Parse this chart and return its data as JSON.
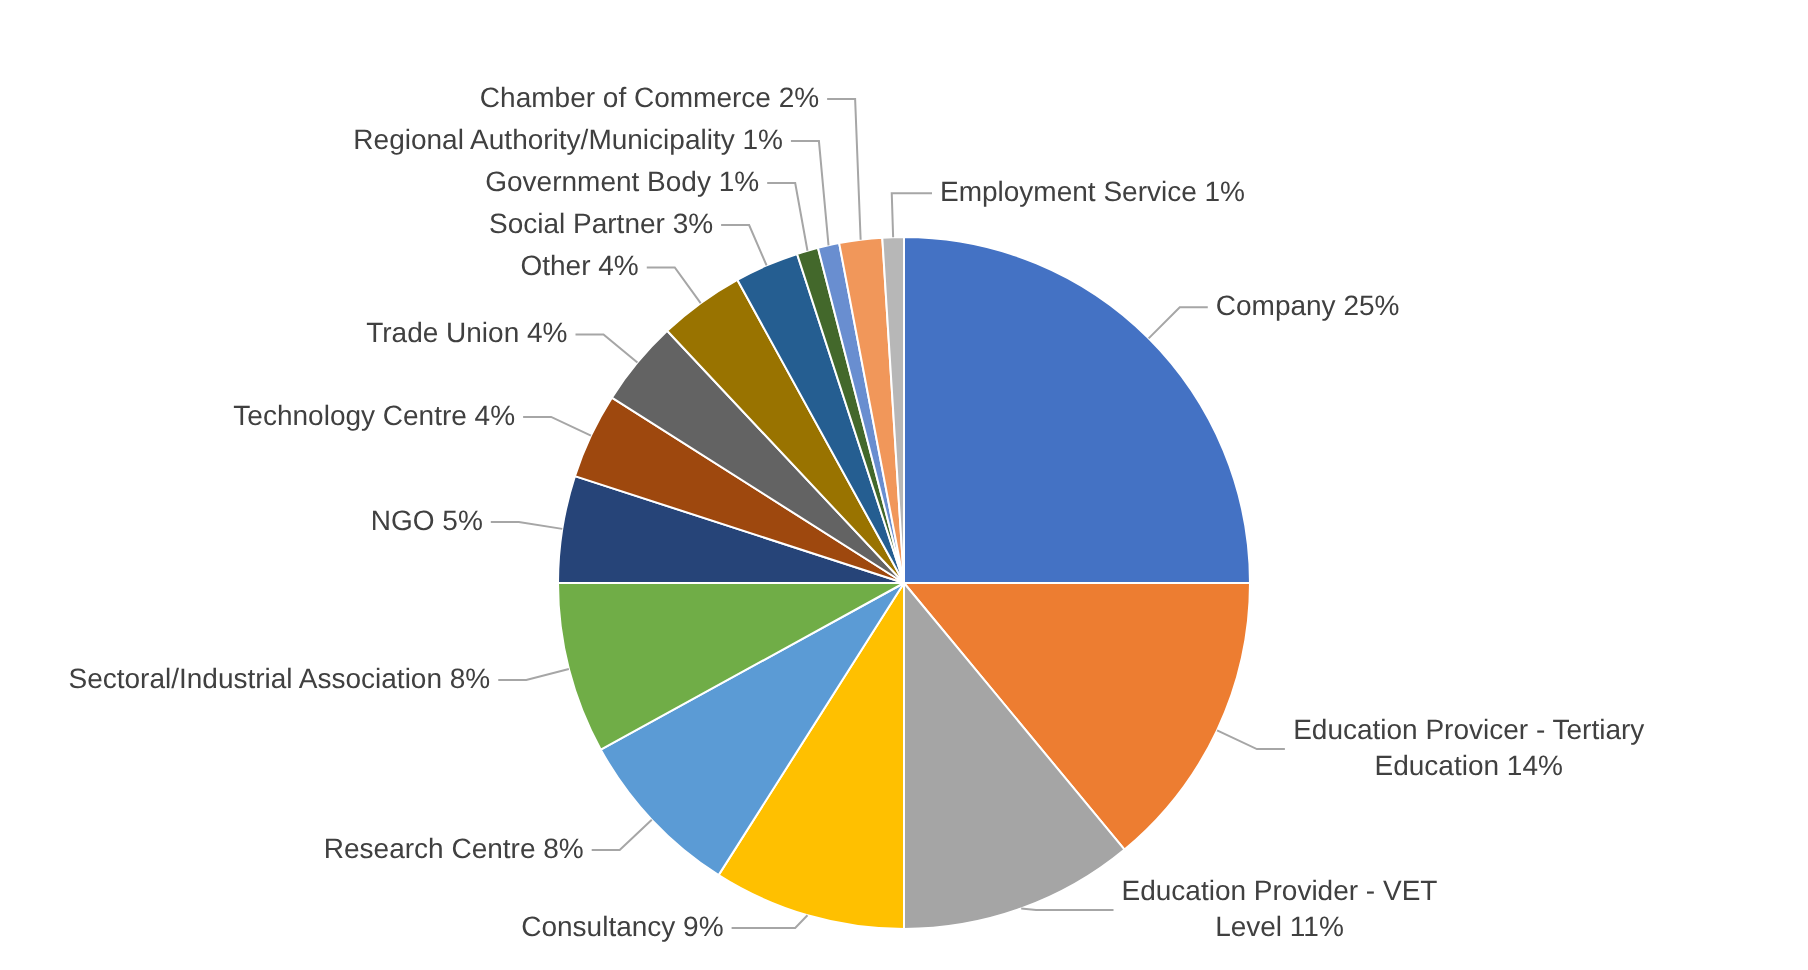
{
  "chart_data": {
    "type": "pie",
    "categories": [
      "Company",
      "Education Provicer - Tertiary Education",
      "Education Provider - VET Level",
      "Consultancy",
      "Research Centre",
      "Sectoral/Industrial Association",
      "NGO",
      "Technology Centre",
      "Trade Union",
      "Other",
      "Social Partner",
      "Government Body",
      "Regional Authority/Municipality",
      "Chamber of Commerce",
      "Employment Service"
    ],
    "values": [
      25,
      14,
      11,
      9,
      8,
      8,
      5,
      4,
      4,
      4,
      3,
      1,
      1,
      2,
      1
    ],
    "value_labels": [
      "25%",
      "14%",
      "11%",
      "9%",
      "8%",
      "8%",
      "5%",
      "4%",
      "4%",
      "4%",
      "3%",
      "1%",
      "1%",
      "2%",
      "1%"
    ],
    "colors": [
      "#4472c4",
      "#ed7d31",
      "#a5a5a5",
      "#ffc000",
      "#5b9bd5",
      "#70ad47",
      "#264478",
      "#9e480e",
      "#636363",
      "#997300",
      "#255e91",
      "#43682b",
      "#698ed0",
      "#f1975a",
      "#b7b7b7"
    ],
    "legend": false
  }
}
